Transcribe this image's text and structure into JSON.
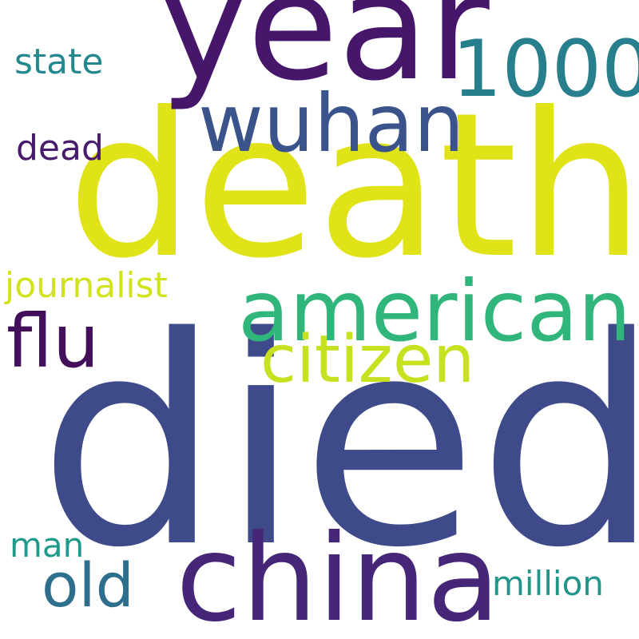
{
  "wordcloud": {
    "words": [
      {
        "id": "died",
        "text": "died",
        "color": "#3e4a89"
      },
      {
        "id": "death",
        "text": "death",
        "color": "#e0e318"
      },
      {
        "id": "year",
        "text": "year",
        "color": "#46166b"
      },
      {
        "id": "china",
        "text": "china",
        "color": "#462777"
      },
      {
        "id": "american",
        "text": "american",
        "color": "#30b57a"
      },
      {
        "id": "wuhan",
        "text": "wuhan",
        "color": "#3a538b"
      },
      {
        "id": "1000",
        "text": "1000",
        "color": "#277f8e"
      },
      {
        "id": "flu",
        "text": "flu",
        "color": "#440f5a"
      },
      {
        "id": "citizen",
        "text": "citizen",
        "color": "#c7e020"
      },
      {
        "id": "old",
        "text": "old",
        "color": "#2e6f8e"
      },
      {
        "id": "journalist",
        "text": "journalist",
        "color": "#d2e21b"
      },
      {
        "id": "dead",
        "text": "dead",
        "color": "#481b6d"
      },
      {
        "id": "state",
        "text": "state",
        "color": "#23898e"
      },
      {
        "id": "man",
        "text": "man",
        "color": "#1f9a8a"
      },
      {
        "id": "million",
        "text": "million",
        "color": "#22958b"
      }
    ]
  }
}
